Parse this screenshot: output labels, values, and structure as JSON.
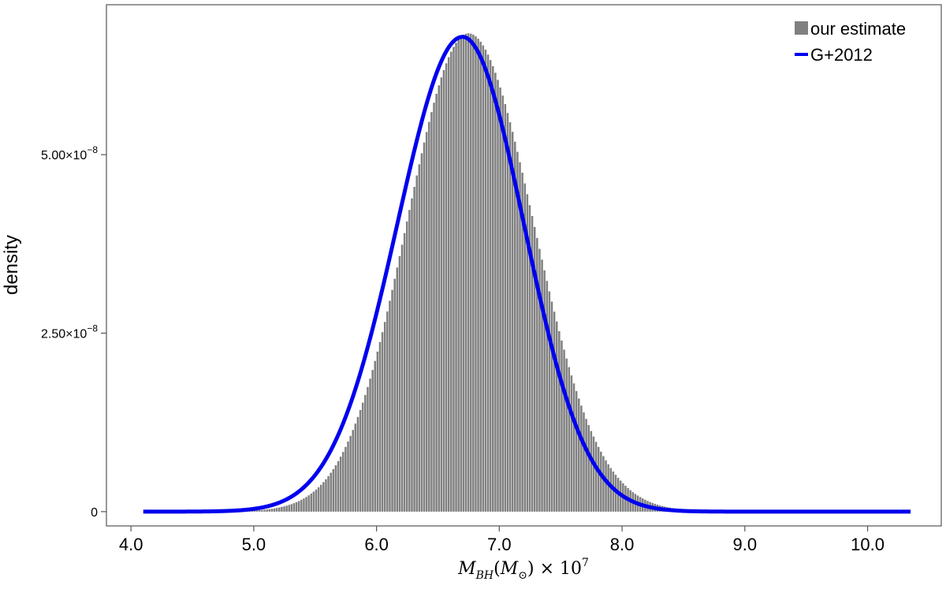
{
  "chart_data": {
    "type": "bar",
    "title": "",
    "xlabel": {
      "var": "M",
      "sub": "BH",
      "paren_var": "M",
      "paren_sub": "⊙",
      "times": "× 10",
      "exp": "7"
    },
    "ylabel": "density",
    "xlim": [
      3.8,
      10.6
    ],
    "ylim": [
      -2e-09,
      7.1e-08
    ],
    "x_ticks": [
      4.0,
      5.0,
      6.0,
      7.0,
      8.0,
      9.0,
      10.0
    ],
    "x_tick_labels": [
      "4.0",
      "5.0",
      "6.0",
      "7.0",
      "8.0",
      "9.0",
      "10.0"
    ],
    "y_ticks": [
      0,
      2.5e-08,
      5e-08
    ],
    "y_tick_labels": [
      {
        "base": "0",
        "exp": ""
      },
      {
        "base": "2.50×10",
        "exp": "−8"
      },
      {
        "base": "5.00×10",
        "exp": "−8"
      }
    ],
    "grid": false,
    "legend_position": "top-right",
    "series": [
      {
        "name": "our estimate",
        "kind": "histogram",
        "color": "#808080",
        "bin_start": 4.8,
        "bin_end": 9.2,
        "bin_width": 0.02,
        "peak_x": 6.75,
        "peak_y": 6.7e-08,
        "sigma_left": 0.5,
        "sigma_right": 0.53
      },
      {
        "name": "G+2012",
        "kind": "line",
        "color": "#0000ee",
        "x_start": 4.1,
        "x_end": 10.35,
        "mean": 6.7,
        "peak_y": 6.65e-08,
        "sigma_left": 0.53,
        "sigma_right": 0.5
      }
    ]
  }
}
